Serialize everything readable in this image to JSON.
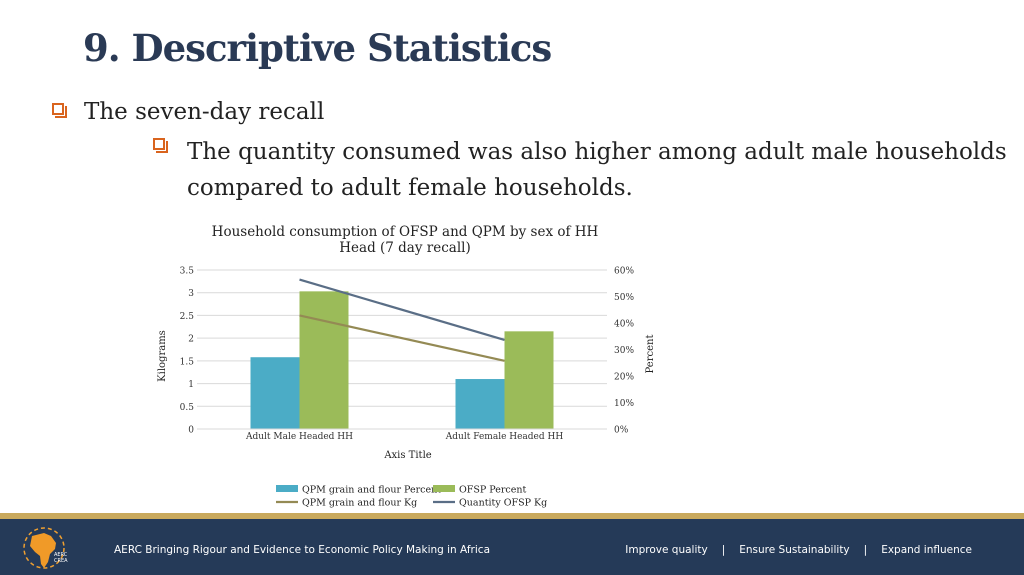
{
  "slide": {
    "title": "9. Descriptive Statistics",
    "bullets": [
      {
        "text": "The seven-day recall"
      },
      {
        "text": "The quantity consumed was also higher among adult male households compared to adult female households."
      }
    ]
  },
  "chart_data": {
    "type": "bar",
    "title": "Household consumption of OFSP and QPM by sex of HH Head (7 day recall)",
    "title_lines": [
      "Household consumption of OFSP and QPM by sex of HH",
      "Head (7 day recall)"
    ],
    "categories": [
      "Adult Male Headed HH",
      "Adult Female Headed HH"
    ],
    "xlabel": "Axis Title",
    "ylabel": "Kilograms",
    "y2label": "Percent",
    "ylim": [
      0,
      3.5
    ],
    "y_ticks": [
      "0",
      "0.5",
      "1",
      "1.5",
      "2",
      "2.5",
      "3",
      "3.5"
    ],
    "y_tick_values": [
      0,
      0.5,
      1,
      1.5,
      2,
      2.5,
      3,
      3.5
    ],
    "y2lim": [
      0,
      60
    ],
    "y2_ticks": [
      "0%",
      "10%",
      "20%",
      "30%",
      "40%",
      "50%",
      "60%"
    ],
    "y2_tick_values": [
      0,
      10,
      20,
      30,
      40,
      50,
      60
    ],
    "grid": true,
    "legend_position": "bottom",
    "series": [
      {
        "name": "QPM grain and flour Percent",
        "kind": "bar",
        "axis": "left",
        "color": "#4bacc6",
        "values": [
          1.58,
          1.1
        ]
      },
      {
        "name": "OFSP Percent",
        "kind": "bar",
        "axis": "left",
        "color": "#9bbb59",
        "values": [
          3.03,
          2.15
        ]
      },
      {
        "name": "QPM grain and flour Kg",
        "kind": "line",
        "axis": "left",
        "color": "#948a54",
        "values": [
          2.5,
          1.5
        ]
      },
      {
        "name": "Quantity OFSP Kg",
        "kind": "line",
        "axis": "left",
        "color": "#5a6e86",
        "values": [
          3.29,
          1.96
        ]
      }
    ],
    "legend_order": [
      0,
      1,
      2,
      3
    ]
  },
  "footer": {
    "tagline": "AERC Bringing Rigour and Evidence to Economic Policy Making in Africa",
    "links": [
      "Improve quality",
      "Ensure Sustainability",
      "Expand influence"
    ],
    "separator": "|",
    "logo_text": "AERC CREA"
  },
  "colors": {
    "title": "#2a3a55",
    "bullet": "#d9641e",
    "footer_bg": "#253a58",
    "footer_stripe": "#c9a95d"
  }
}
